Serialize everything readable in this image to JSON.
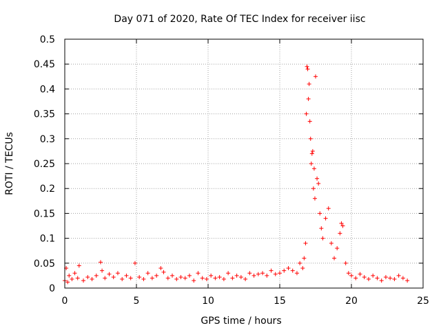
{
  "chart_data": {
    "type": "scatter",
    "title": "Day 071 of 2020, Rate Of TEC Index for receiver iisc",
    "xlabel": "GPS time / hours",
    "ylabel": "ROTI / TECUs",
    "xlim": [
      0,
      25
    ],
    "ylim": [
      0,
      0.5
    ],
    "xticks": [
      0,
      5,
      10,
      15,
      20,
      25
    ],
    "xtick_labels": [
      "0",
      "5",
      "10",
      "15",
      "20",
      "25"
    ],
    "yticks": [
      0,
      0.05,
      0.1,
      0.15,
      0.2,
      0.25,
      0.3,
      0.35,
      0.4,
      0.45,
      0.5
    ],
    "ytick_labels": [
      "0",
      "0.05",
      "0.1",
      "0.15",
      "0.2",
      "0.25",
      "0.3",
      "0.35",
      "0.4",
      "0.45",
      "0.5"
    ],
    "grid": true,
    "marker": "+",
    "marker_color": "#ff0000",
    "series": [
      {
        "x": [
          0.0,
          0.1,
          0.2,
          0.3,
          0.5,
          0.7,
          0.9,
          1.0,
          1.3,
          1.6,
          1.9,
          2.2,
          2.5,
          2.6,
          2.8,
          3.1,
          3.4,
          3.7,
          4.0,
          4.3,
          4.6,
          4.9,
          5.2,
          5.5,
          5.8,
          6.1,
          6.4,
          6.7,
          6.9,
          7.2,
          7.5,
          7.8,
          8.1,
          8.4,
          8.7,
          9.0,
          9.3,
          9.6,
          9.9,
          10.2,
          10.5,
          10.8,
          11.1,
          11.4,
          11.7,
          12.0,
          12.3,
          12.6,
          12.9,
          13.2,
          13.5,
          13.8,
          14.1,
          14.4,
          14.7,
          15.0,
          15.3,
          15.6,
          15.9,
          16.2,
          16.4,
          16.6,
          16.7,
          16.8,
          16.85,
          16.9,
          16.95,
          17.0,
          17.05,
          17.1,
          17.15,
          17.2,
          17.25,
          17.3,
          17.35,
          17.4,
          17.45,
          17.5,
          17.6,
          17.7,
          17.8,
          17.9,
          18.0,
          18.2,
          18.4,
          18.6,
          18.8,
          19.0,
          19.2,
          19.3,
          19.4,
          19.6,
          19.8,
          20.0,
          20.3,
          20.6,
          20.9,
          21.2,
          21.5,
          21.8,
          22.1,
          22.4,
          22.7,
          23.0,
          23.3,
          23.6,
          23.9
        ],
        "y": [
          0.015,
          0.04,
          0.012,
          0.025,
          0.018,
          0.03,
          0.02,
          0.045,
          0.015,
          0.022,
          0.018,
          0.025,
          0.052,
          0.035,
          0.02,
          0.028,
          0.022,
          0.03,
          0.018,
          0.025,
          0.02,
          0.05,
          0.022,
          0.018,
          0.03,
          0.02,
          0.025,
          0.04,
          0.032,
          0.02,
          0.025,
          0.018,
          0.022,
          0.02,
          0.025,
          0.015,
          0.03,
          0.02,
          0.018,
          0.025,
          0.02,
          0.022,
          0.018,
          0.03,
          0.02,
          0.025,
          0.022,
          0.018,
          0.03,
          0.025,
          0.028,
          0.03,
          0.025,
          0.035,
          0.028,
          0.03,
          0.035,
          0.04,
          0.035,
          0.03,
          0.05,
          0.04,
          0.06,
          0.09,
          0.35,
          0.445,
          0.44,
          0.38,
          0.41,
          0.335,
          0.3,
          0.25,
          0.27,
          0.275,
          0.2,
          0.24,
          0.18,
          0.425,
          0.22,
          0.21,
          0.15,
          0.12,
          0.1,
          0.14,
          0.16,
          0.09,
          0.06,
          0.08,
          0.11,
          0.13,
          0.125,
          0.05,
          0.03,
          0.025,
          0.02,
          0.028,
          0.022,
          0.018,
          0.025,
          0.02,
          0.015,
          0.022,
          0.02,
          0.018,
          0.025,
          0.02,
          0.015
        ]
      }
    ]
  }
}
